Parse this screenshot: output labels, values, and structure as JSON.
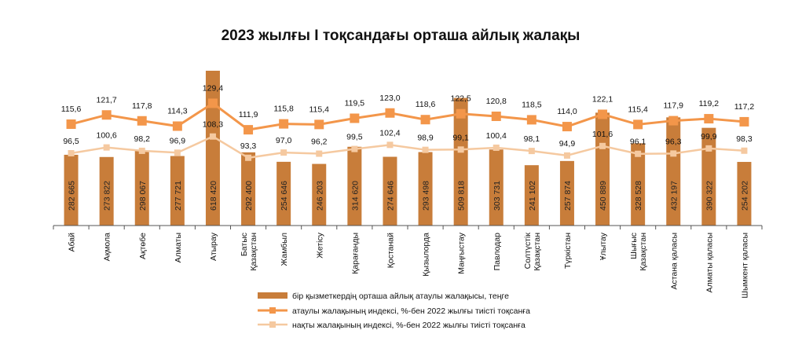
{
  "colors": {
    "bar": "#C87D3A",
    "nominal": "#F3964A",
    "real": "#F5C9A0",
    "axis": "#555555"
  },
  "chart_data": {
    "type": "bar",
    "title": "2023 жылғы I тоқсандағы орташа айлық жалақы",
    "categories": [
      "Абай",
      "Ақмола",
      "Ақтөбе",
      "Алматы",
      "Атырау",
      "Батыс Қазақстан",
      "Жамбыл",
      "Жетісу",
      "Қарағанды",
      "Қостанай",
      "Қызылорда",
      "Маңғыстау",
      "Павлодар",
      "Солтүстік Қазақстан",
      "Түркістан",
      "Ұлытау",
      "Шығыс Қазақстан",
      "Астана қаласы",
      "Алматы қаласы",
      "Шымкент қаласы"
    ],
    "category_lines": [
      [
        "Абай"
      ],
      [
        "Ақмола"
      ],
      [
        "Ақтөбе"
      ],
      [
        "Алматы"
      ],
      [
        "Атырау"
      ],
      [
        "Батыс",
        "Қазақстан"
      ],
      [
        "Жамбыл"
      ],
      [
        "Жетісу"
      ],
      [
        "Қарағанды"
      ],
      [
        "Қостанай"
      ],
      [
        "Қызылорда"
      ],
      [
        "Маңғыстау"
      ],
      [
        "Павлодар"
      ],
      [
        "Солтүстік",
        "Қазақстан"
      ],
      [
        "Түркістан"
      ],
      [
        "Ұлытау"
      ],
      [
        "Шығыс",
        "Қазақстан"
      ],
      [
        "Астана қаласы"
      ],
      [
        "Алматы қаласы"
      ],
      [
        "Шымкент қаласы"
      ]
    ],
    "series": [
      {
        "name": "бір қызметкердің орташа айлық атаулы жалақысы, теңге",
        "kind": "bar",
        "values": [
          282665,
          273822,
          298067,
          277721,
          618420,
          292400,
          254646,
          246203,
          314620,
          274646,
          293498,
          509818,
          303731,
          241102,
          257874,
          450889,
          328528,
          432197,
          390322,
          254202
        ],
        "labels": [
          "282 665",
          "273 822",
          "298 067",
          "277 721",
          "618 420",
          "292 400",
          "254 646",
          "246 203",
          "314 620",
          "274 646",
          "293 498",
          "509 818",
          "303 731",
          "241 102",
          "257 874",
          "450 889",
          "328 528",
          "432 197",
          "390 322",
          "254 202"
        ]
      },
      {
        "name": "атаулы жалақының индексі, %-бен 2022 жылғы тиісті тоқсанға",
        "kind": "line",
        "values": [
          115.6,
          121.7,
          117.8,
          114.3,
          129.4,
          111.9,
          115.8,
          115.4,
          119.5,
          123.0,
          118.6,
          122.5,
          120.8,
          118.5,
          114.0,
          122.1,
          115.4,
          117.9,
          119.2,
          117.2
        ],
        "labels": [
          "115,6",
          "121,7",
          "117,8",
          "114,3",
          "129,4",
          "111,9",
          "115,8",
          "115,4",
          "119,5",
          "123,0",
          "118,6",
          "122,5",
          "120,8",
          "118,5",
          "114,0",
          "122,1",
          "115,4",
          "117,9",
          "119,2",
          "117,2"
        ]
      },
      {
        "name": "нақты жалақының индексі, %-бен 2022 жылғы тиісті тоқсанға",
        "kind": "line",
        "values": [
          96.5,
          100.6,
          98.2,
          96.9,
          108.3,
          93.3,
          97.0,
          96.2,
          99.5,
          102.4,
          98.9,
          99.1,
          100.4,
          98.1,
          94.9,
          101.6,
          96.1,
          96.3,
          99.9,
          98.3
        ],
        "labels": [
          "96,5",
          "100,6",
          "98,2",
          "96,9",
          "108,3",
          "93,3",
          "97,0",
          "96,2",
          "99,5",
          "102,4",
          "98,9",
          "99,1",
          "100,4",
          "98,1",
          "94,9",
          "101,6",
          "96,1",
          "96,3",
          "99,9",
          "98,3"
        ]
      }
    ],
    "legend_position": "bottom",
    "grid": false
  }
}
